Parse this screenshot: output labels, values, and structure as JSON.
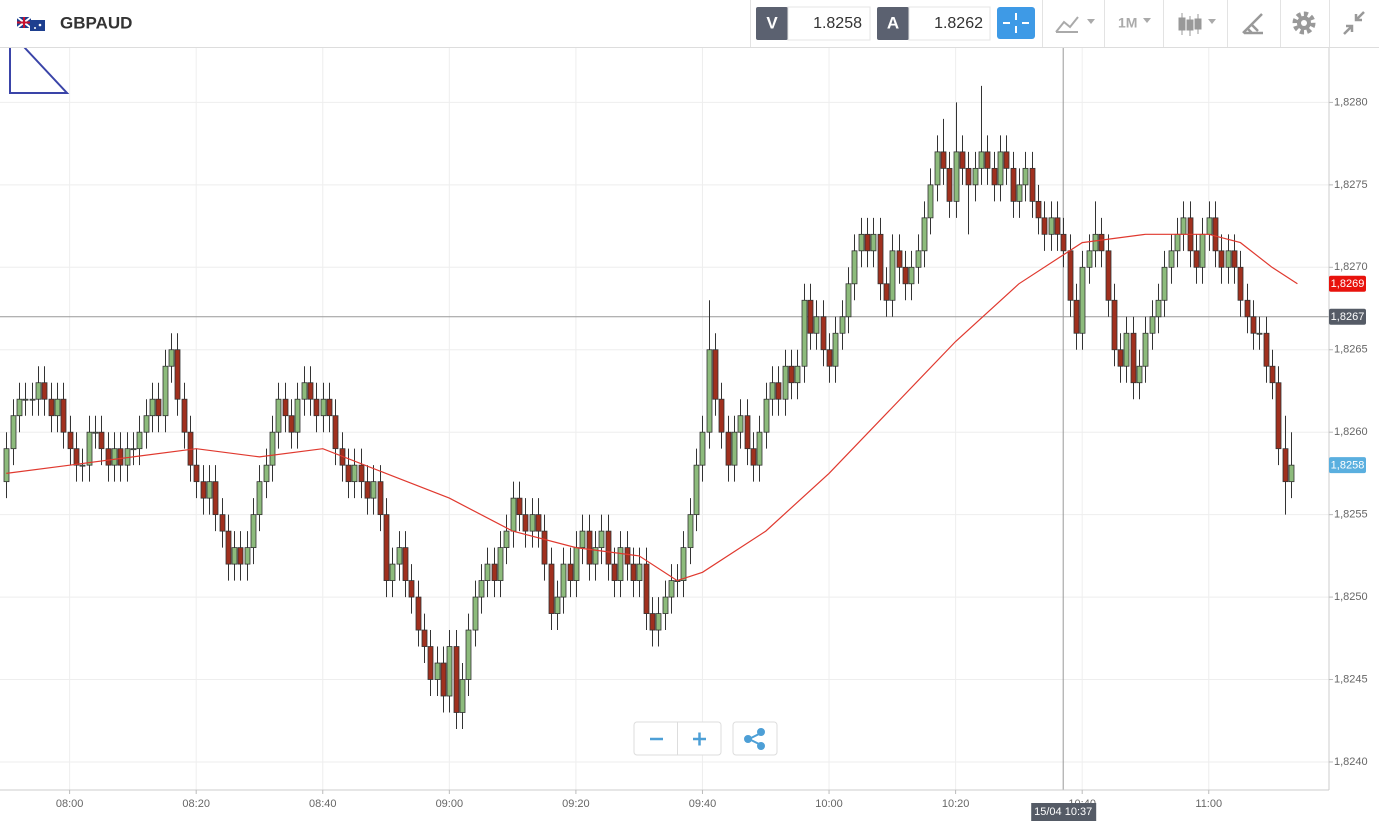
{
  "header": {
    "symbol": "GBPAUD",
    "sell_label": "V",
    "sell_price": "1.8258",
    "buy_label": "A",
    "buy_price": "1.8262",
    "interval": "1M"
  },
  "chart_data": {
    "type": "candlestick",
    "x": [
      "07:50",
      "07:51",
      "07:52",
      "07:53",
      "07:54",
      "07:55",
      "07:56",
      "07:57",
      "07:58",
      "07:59",
      "08:00",
      "08:01",
      "08:02",
      "08:03",
      "08:04",
      "08:05",
      "08:06",
      "08:07",
      "08:08",
      "08:09",
      "08:10",
      "08:11",
      "08:12",
      "08:13",
      "08:14",
      "08:15",
      "08:16",
      "08:17",
      "08:18",
      "08:19",
      "08:20",
      "08:21",
      "08:22",
      "08:23",
      "08:24",
      "08:25",
      "08:26",
      "08:27",
      "08:28",
      "08:29",
      "08:30",
      "08:31",
      "08:32",
      "08:33",
      "08:34",
      "08:35",
      "08:36",
      "08:37",
      "08:38",
      "08:39",
      "08:40",
      "08:41",
      "08:42",
      "08:43",
      "08:44",
      "08:45",
      "08:46",
      "08:47",
      "08:48",
      "08:49",
      "08:50",
      "08:51",
      "08:52",
      "08:53",
      "08:54",
      "08:55",
      "08:56",
      "08:57",
      "08:58",
      "08:59",
      "09:00",
      "09:01",
      "09:02",
      "09:03",
      "09:04",
      "09:05",
      "09:06",
      "09:07",
      "09:08",
      "09:09",
      "09:10",
      "09:11",
      "09:12",
      "09:13",
      "09:14",
      "09:15",
      "09:16",
      "09:17",
      "09:18",
      "09:19",
      "09:20",
      "09:21",
      "09:22",
      "09:23",
      "09:24",
      "09:25",
      "09:26",
      "09:27",
      "09:28",
      "09:29",
      "09:30",
      "09:31",
      "09:32",
      "09:33",
      "09:34",
      "09:35",
      "09:36",
      "09:37",
      "09:38",
      "09:39",
      "09:40",
      "09:41",
      "09:42",
      "09:43",
      "09:44",
      "09:45",
      "09:46",
      "09:47",
      "09:48",
      "09:49",
      "09:50",
      "09:51",
      "09:52",
      "09:53",
      "09:54",
      "09:55",
      "09:56",
      "09:57",
      "09:58",
      "09:59",
      "10:00",
      "10:01",
      "10:02",
      "10:03",
      "10:04",
      "10:05",
      "10:06",
      "10:07",
      "10:08",
      "10:09",
      "10:10",
      "10:11",
      "10:12",
      "10:13",
      "10:14",
      "10:15",
      "10:16",
      "10:17",
      "10:18",
      "10:19",
      "10:20",
      "10:21",
      "10:22",
      "10:23",
      "10:24",
      "10:25",
      "10:26",
      "10:27",
      "10:28",
      "10:29",
      "10:30",
      "10:31",
      "10:32",
      "10:33",
      "10:34",
      "10:35",
      "10:36",
      "10:37",
      "10:38",
      "10:39",
      "10:40",
      "10:41",
      "10:42",
      "10:43",
      "10:44",
      "10:45",
      "10:46",
      "10:47",
      "10:48",
      "10:49",
      "10:50",
      "10:51",
      "10:52",
      "10:53",
      "10:54",
      "10:55",
      "10:56",
      "10:57",
      "10:58",
      "10:59",
      "11:00",
      "11:01",
      "11:02",
      "11:03",
      "11:04",
      "11:05",
      "11:06",
      "11:07",
      "11:08",
      "11:09",
      "11:10",
      "11:11",
      "11:12",
      "11:13"
    ],
    "open": [
      1.8257,
      1.8259,
      1.8261,
      1.8262,
      1.8262,
      1.8262,
      1.8263,
      1.8262,
      1.8261,
      1.8262,
      1.826,
      1.8259,
      1.8258,
      1.8258,
      1.826,
      1.826,
      1.8259,
      1.8258,
      1.8259,
      1.8258,
      1.8259,
      1.8259,
      1.826,
      1.8261,
      1.8262,
      1.8261,
      1.8264,
      1.8265,
      1.8262,
      1.826,
      1.8258,
      1.8257,
      1.8256,
      1.8257,
      1.8255,
      1.8254,
      1.8252,
      1.8253,
      1.8252,
      1.8253,
      1.8255,
      1.8257,
      1.8258,
      1.826,
      1.8262,
      1.8261,
      1.826,
      1.8262,
      1.8263,
      1.8262,
      1.8261,
      1.8262,
      1.8261,
      1.8259,
      1.8258,
      1.8257,
      1.8258,
      1.8257,
      1.8256,
      1.8257,
      1.8255,
      1.8251,
      1.8252,
      1.8253,
      1.8251,
      1.825,
      1.8248,
      1.8247,
      1.8245,
      1.8246,
      1.8244,
      1.8247,
      1.8243,
      1.8245,
      1.8248,
      1.825,
      1.8251,
      1.8252,
      1.8251,
      1.8253,
      1.8254,
      1.8256,
      1.8255,
      1.8254,
      1.8255,
      1.8254,
      1.8252,
      1.8249,
      1.825,
      1.8252,
      1.8251,
      1.8253,
      1.8254,
      1.8252,
      1.8253,
      1.8254,
      1.8252,
      1.8251,
      1.8253,
      1.8252,
      1.8251,
      1.8252,
      1.8249,
      1.8248,
      1.8249,
      1.825,
      1.8251,
      1.8251,
      1.8253,
      1.8255,
      1.8258,
      1.826,
      1.8265,
      1.8262,
      1.826,
      1.8258,
      1.826,
      1.8261,
      1.8259,
      1.8258,
      1.826,
      1.8262,
      1.8263,
      1.8262,
      1.8264,
      1.8263,
      1.8264,
      1.8268,
      1.8266,
      1.8267,
      1.8265,
      1.8264,
      1.8266,
      1.8267,
      1.8269,
      1.8271,
      1.8272,
      1.8271,
      1.8272,
      1.8269,
      1.8268,
      1.8271,
      1.827,
      1.8269,
      1.827,
      1.8271,
      1.8273,
      1.8275,
      1.8277,
      1.8276,
      1.8274,
      1.8277,
      1.8276,
      1.8275,
      1.8276,
      1.8277,
      1.8276,
      1.8275,
      1.8277,
      1.8276,
      1.8274,
      1.8275,
      1.8276,
      1.8274,
      1.8273,
      1.8272,
      1.8273,
      1.8272,
      1.8271,
      1.8268,
      1.8266,
      1.827,
      1.8271,
      1.8272,
      1.8271,
      1.8268,
      1.8265,
      1.8264,
      1.8266,
      1.8263,
      1.8264,
      1.8266,
      1.8267,
      1.8268,
      1.827,
      1.8271,
      1.8272,
      1.8273,
      1.8271,
      1.827,
      1.8272,
      1.8273,
      1.8271,
      1.827,
      1.8271,
      1.827,
      1.8268,
      1.8267,
      1.8266,
      1.8266,
      1.8264,
      1.8263,
      1.8259,
      1.8257
    ],
    "high": [
      1.826,
      1.8262,
      1.8263,
      1.8263,
      1.8263,
      1.8264,
      1.8264,
      1.8263,
      1.8263,
      1.8263,
      1.8261,
      1.826,
      1.8259,
      1.8261,
      1.8261,
      1.8261,
      1.826,
      1.826,
      1.826,
      1.826,
      1.826,
      1.8261,
      1.8262,
      1.8263,
      1.8263,
      1.8265,
      1.8266,
      1.8266,
      1.8263,
      1.8261,
      1.8259,
      1.8258,
      1.8258,
      1.8258,
      1.8256,
      1.8255,
      1.8254,
      1.8254,
      1.8254,
      1.8256,
      1.8258,
      1.8259,
      1.8261,
      1.8263,
      1.8263,
      1.8262,
      1.8263,
      1.8264,
      1.8264,
      1.8263,
      1.8263,
      1.8263,
      1.8262,
      1.826,
      1.8259,
      1.8259,
      1.8259,
      1.8258,
      1.8258,
      1.8258,
      1.8256,
      1.8253,
      1.8254,
      1.8254,
      1.8252,
      1.8251,
      1.8249,
      1.8248,
      1.8247,
      1.8247,
      1.8248,
      1.8248,
      1.8246,
      1.8249,
      1.8251,
      1.8252,
      1.8253,
      1.8253,
      1.8254,
      1.8255,
      1.8257,
      1.8257,
      1.8256,
      1.8256,
      1.8256,
      1.8255,
      1.8253,
      1.8251,
      1.8253,
      1.8253,
      1.8254,
      1.8255,
      1.8255,
      1.8254,
      1.8255,
      1.8255,
      1.8253,
      1.8254,
      1.8254,
      1.8253,
      1.8253,
      1.8253,
      1.825,
      1.825,
      1.8251,
      1.8252,
      1.8252,
      1.8254,
      1.8256,
      1.8259,
      1.8261,
      1.8268,
      1.8266,
      1.8263,
      1.8261,
      1.8261,
      1.8262,
      1.8262,
      1.826,
      1.8261,
      1.8263,
      1.8264,
      1.8264,
      1.8265,
      1.8265,
      1.8265,
      1.8269,
      1.8269,
      1.8268,
      1.8268,
      1.8266,
      1.8267,
      1.8268,
      1.827,
      1.8272,
      1.8273,
      1.8273,
      1.8273,
      1.8273,
      1.827,
      1.8272,
      1.8272,
      1.8271,
      1.8271,
      1.8272,
      1.8274,
      1.8276,
      1.8278,
      1.8279,
      1.8277,
      1.828,
      1.8278,
      1.8277,
      1.8277,
      1.8281,
      1.8278,
      1.8277,
      1.8278,
      1.8278,
      1.8277,
      1.8276,
      1.8277,
      1.8277,
      1.8275,
      1.8274,
      1.8274,
      1.8274,
      1.8273,
      1.8272,
      1.8269,
      1.8271,
      1.8272,
      1.8274,
      1.8273,
      1.8272,
      1.8269,
      1.8266,
      1.8267,
      1.8267,
      1.8265,
      1.8267,
      1.8268,
      1.8269,
      1.8271,
      1.8272,
      1.8273,
      1.8274,
      1.8274,
      1.8272,
      1.8273,
      1.8274,
      1.8274,
      1.8272,
      1.8272,
      1.8272,
      1.8271,
      1.8269,
      1.8268,
      1.8267,
      1.8267,
      1.8265,
      1.8264,
      1.8261,
      1.826
    ],
    "low": [
      1.8256,
      1.8258,
      1.826,
      1.8261,
      1.8261,
      1.8261,
      1.8261,
      1.826,
      1.826,
      1.8259,
      1.8258,
      1.8257,
      1.8257,
      1.8257,
      1.8259,
      1.8258,
      1.8257,
      1.8257,
      1.8257,
      1.8257,
      1.8258,
      1.8258,
      1.8259,
      1.826,
      1.826,
      1.826,
      1.8263,
      1.8261,
      1.8259,
      1.8257,
      1.8256,
      1.8255,
      1.8255,
      1.8254,
      1.8253,
      1.8251,
      1.8251,
      1.8251,
      1.8251,
      1.8252,
      1.8254,
      1.8256,
      1.8257,
      1.8259,
      1.826,
      1.8259,
      1.8259,
      1.8261,
      1.8261,
      1.826,
      1.826,
      1.826,
      1.8258,
      1.8257,
      1.8256,
      1.8256,
      1.8256,
      1.8255,
      1.8255,
      1.8254,
      1.825,
      1.825,
      1.8251,
      1.825,
      1.8249,
      1.8247,
      1.8246,
      1.8244,
      1.8244,
      1.8243,
      1.8243,
      1.8242,
      1.8242,
      1.8244,
      1.8247,
      1.8249,
      1.825,
      1.825,
      1.825,
      1.8252,
      1.8253,
      1.8254,
      1.8253,
      1.8253,
      1.8253,
      1.8251,
      1.8248,
      1.8248,
      1.8249,
      1.825,
      1.825,
      1.8252,
      1.8251,
      1.8251,
      1.8252,
      1.8251,
      1.825,
      1.825,
      1.8251,
      1.825,
      1.825,
      1.8248,
      1.8247,
      1.8247,
      1.8248,
      1.8249,
      1.825,
      1.825,
      1.8252,
      1.8254,
      1.8257,
      1.8259,
      1.8261,
      1.8259,
      1.8257,
      1.8257,
      1.8259,
      1.8258,
      1.8257,
      1.8257,
      1.8259,
      1.8261,
      1.8261,
      1.8261,
      1.8262,
      1.8262,
      1.8263,
      1.8265,
      1.8265,
      1.8264,
      1.8263,
      1.8263,
      1.8265,
      1.8266,
      1.8268,
      1.827,
      1.827,
      1.827,
      1.8268,
      1.8267,
      1.8267,
      1.8269,
      1.8268,
      1.8268,
      1.8269,
      1.827,
      1.8272,
      1.8274,
      1.8275,
      1.8273,
      1.8273,
      1.8275,
      1.8272,
      1.8274,
      1.8275,
      1.8275,
      1.8274,
      1.8274,
      1.8275,
      1.8273,
      1.8273,
      1.8274,
      1.8273,
      1.8272,
      1.8271,
      1.8271,
      1.8271,
      1.827,
      1.8267,
      1.8265,
      1.8265,
      1.8269,
      1.827,
      1.827,
      1.8267,
      1.8264,
      1.8263,
      1.8263,
      1.8262,
      1.8262,
      1.8263,
      1.8265,
      1.8266,
      1.8267,
      1.8269,
      1.827,
      1.8271,
      1.827,
      1.8269,
      1.8269,
      1.8271,
      1.827,
      1.8269,
      1.8269,
      1.8269,
      1.8267,
      1.8266,
      1.8265,
      1.8265,
      1.8263,
      1.8262,
      1.8258,
      1.8255,
      1.8256
    ],
    "close": [
      1.8259,
      1.8261,
      1.8262,
      1.8262,
      1.8262,
      1.8263,
      1.8262,
      1.8261,
      1.8262,
      1.826,
      1.8259,
      1.8258,
      1.8258,
      1.826,
      1.826,
      1.8259,
      1.8258,
      1.8259,
      1.8258,
      1.8259,
      1.8259,
      1.826,
      1.8261,
      1.8262,
      1.8261,
      1.8264,
      1.8265,
      1.8262,
      1.826,
      1.8258,
      1.8257,
      1.8256,
      1.8257,
      1.8255,
      1.8254,
      1.8252,
      1.8253,
      1.8252,
      1.8253,
      1.8255,
      1.8257,
      1.8258,
      1.826,
      1.8262,
      1.8261,
      1.826,
      1.8262,
      1.8263,
      1.8262,
      1.8261,
      1.8262,
      1.8261,
      1.8259,
      1.8258,
      1.8257,
      1.8258,
      1.8257,
      1.8256,
      1.8257,
      1.8255,
      1.8251,
      1.8252,
      1.8253,
      1.8251,
      1.825,
      1.8248,
      1.8247,
      1.8245,
      1.8246,
      1.8244,
      1.8247,
      1.8243,
      1.8245,
      1.8248,
      1.825,
      1.8251,
      1.8252,
      1.8251,
      1.8253,
      1.8254,
      1.8256,
      1.8255,
      1.8254,
      1.8255,
      1.8254,
      1.8252,
      1.8249,
      1.825,
      1.8252,
      1.8251,
      1.8253,
      1.8254,
      1.8252,
      1.8253,
      1.8254,
      1.8252,
      1.8251,
      1.8253,
      1.8252,
      1.8251,
      1.8252,
      1.8249,
      1.8248,
      1.8249,
      1.825,
      1.8251,
      1.8251,
      1.8253,
      1.8255,
      1.8258,
      1.826,
      1.8265,
      1.8262,
      1.826,
      1.8258,
      1.826,
      1.8261,
      1.8259,
      1.8258,
      1.826,
      1.8262,
      1.8263,
      1.8262,
      1.8264,
      1.8263,
      1.8264,
      1.8268,
      1.8266,
      1.8267,
      1.8265,
      1.8264,
      1.8266,
      1.8267,
      1.8269,
      1.8271,
      1.8272,
      1.8271,
      1.8272,
      1.8269,
      1.8268,
      1.8271,
      1.827,
      1.8269,
      1.827,
      1.8271,
      1.8273,
      1.8275,
      1.8277,
      1.8276,
      1.8274,
      1.8277,
      1.8276,
      1.8275,
      1.8276,
      1.8277,
      1.8276,
      1.8275,
      1.8277,
      1.8276,
      1.8274,
      1.8275,
      1.8276,
      1.8274,
      1.8273,
      1.8272,
      1.8273,
      1.8272,
      1.8271,
      1.8268,
      1.8266,
      1.827,
      1.8271,
      1.8272,
      1.8271,
      1.8268,
      1.8265,
      1.8264,
      1.8266,
      1.8263,
      1.8264,
      1.8266,
      1.8267,
      1.8268,
      1.827,
      1.8271,
      1.8272,
      1.8273,
      1.8271,
      1.827,
      1.8272,
      1.8273,
      1.8271,
      1.827,
      1.8271,
      1.827,
      1.8268,
      1.8267,
      1.8266,
      1.8266,
      1.8264,
      1.8263,
      1.8259,
      1.8257,
      1.8258
    ],
    "up_color": "#8dbb7c",
    "down_color": "#a0301e",
    "moving_average": {
      "color": "#e0392f",
      "x": [
        "07:50",
        "08:00",
        "08:10",
        "08:20",
        "08:30",
        "08:40",
        "08:50",
        "09:00",
        "09:10",
        "09:20",
        "09:30",
        "09:36",
        "09:40",
        "09:50",
        "10:00",
        "10:10",
        "10:20",
        "10:30",
        "10:40",
        "10:50",
        "11:00",
        "11:05",
        "11:10",
        "11:14"
      ],
      "values": [
        1.82575,
        1.8258,
        1.82585,
        1.8259,
        1.82585,
        1.8259,
        1.82575,
        1.8256,
        1.8254,
        1.8253,
        1.82525,
        1.8251,
        1.82515,
        1.8254,
        1.82575,
        1.82615,
        1.82655,
        1.8269,
        1.82715,
        1.8272,
        1.8272,
        1.82715,
        1.827,
        1.8269
      ]
    },
    "xlim": [
      "07:49",
      "11:19"
    ],
    "xticks": [
      "08:00",
      "08:20",
      "08:40",
      "09:00",
      "09:20",
      "09:40",
      "10:00",
      "10:20",
      "10:40",
      "11:00"
    ],
    "ylim": [
      1.82383,
      1.82833
    ],
    "yticks": [
      {
        "value": 1.824,
        "label": "1,8240"
      },
      {
        "value": 1.8245,
        "label": "1,8245"
      },
      {
        "value": 1.825,
        "label": "1,8250"
      },
      {
        "value": 1.8255,
        "label": "1,8255"
      },
      {
        "value": 1.826,
        "label": "1,8260"
      },
      {
        "value": 1.8265,
        "label": "1,8265"
      },
      {
        "value": 1.827,
        "label": "1,8270"
      },
      {
        "value": 1.8275,
        "label": "1,8275"
      },
      {
        "value": 1.828,
        "label": "1,8280"
      }
    ],
    "grid": true,
    "price_tags": [
      {
        "value": 1.8269,
        "label": "1,8269",
        "color": "#e8120c"
      },
      {
        "value": 1.8258,
        "label": "1,8258",
        "color": "#5aafdf"
      }
    ],
    "crosshair": {
      "value": 1.8267,
      "label": "1,8267",
      "color": "#555b66",
      "time_label": "15/04 10:37"
    }
  }
}
